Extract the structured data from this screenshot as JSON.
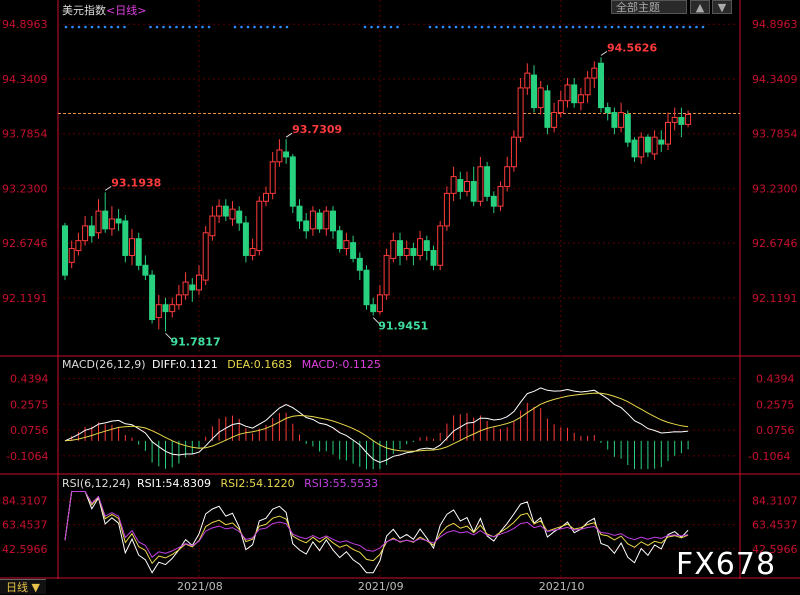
{
  "header": {
    "title": "美元指数",
    "period": "<日线>",
    "theme_button": "全部主题",
    "arrow_up": "▲",
    "arrow_down": "▼"
  },
  "colors": {
    "up": "#ff3b3b",
    "down": "#27d17f",
    "axis": "#c8102e",
    "grid": "#5a0000",
    "high_label": "#ff3b3b",
    "low_label": "#40e0a0",
    "dif": "#ffffff",
    "dea": "#e8d84a",
    "macd": "#e040e0",
    "rsi1": "#ffffff",
    "rsi2": "#e8d84a",
    "rsi3": "#c040e0",
    "dots": "#2a8cff",
    "ref_line": "#e89040"
  },
  "chart_data": {
    "type": "candlestick",
    "price_ticks": [
      "94.8963",
      "94.3409",
      "93.7854",
      "93.2300",
      "92.6746",
      "92.1191"
    ],
    "price_range": [
      91.55,
      95.0
    ],
    "x_labels": [
      "2021/08",
      "2021/09",
      "2021/10"
    ],
    "annotations": [
      {
        "text": "93.1938",
        "index": 6,
        "kind": "high"
      },
      {
        "text": "91.7817",
        "index": 15,
        "kind": "low"
      },
      {
        "text": "93.7309",
        "index": 33,
        "kind": "high"
      },
      {
        "text": "91.9451",
        "index": 46,
        "kind": "low"
      },
      {
        "text": "94.5626",
        "index": 80,
        "kind": "high"
      }
    ],
    "reference_price": 93.99,
    "candles": [
      [
        92.85,
        92.35,
        92.88,
        92.3
      ],
      [
        92.48,
        92.62,
        92.7,
        92.42
      ],
      [
        92.6,
        92.7,
        92.78,
        92.55
      ],
      [
        92.7,
        92.85,
        92.95,
        92.65
      ],
      [
        92.85,
        92.75,
        92.95,
        92.68
      ],
      [
        92.78,
        93.0,
        93.12,
        92.72
      ],
      [
        93.0,
        92.82,
        93.19,
        92.78
      ],
      [
        92.82,
        92.92,
        93.05,
        92.75
      ],
      [
        92.92,
        92.88,
        93.02,
        92.8
      ],
      [
        92.9,
        92.55,
        92.96,
        92.48
      ],
      [
        92.55,
        92.72,
        92.82,
        92.45
      ],
      [
        92.72,
        92.45,
        92.78,
        92.4
      ],
      [
        92.45,
        92.35,
        92.55,
        92.3
      ],
      [
        92.35,
        91.9,
        92.4,
        91.86
      ],
      [
        91.92,
        92.05,
        92.15,
        91.8
      ],
      [
        92.05,
        91.98,
        92.12,
        91.78
      ],
      [
        91.98,
        92.05,
        92.12,
        91.92
      ],
      [
        92.05,
        92.15,
        92.25,
        92.0
      ],
      [
        92.15,
        92.28,
        92.38,
        92.1
      ],
      [
        92.25,
        92.2,
        92.32,
        92.08
      ],
      [
        92.2,
        92.35,
        92.45,
        92.15
      ],
      [
        92.3,
        92.78,
        92.85,
        92.25
      ],
      [
        92.75,
        92.95,
        93.05,
        92.7
      ],
      [
        92.95,
        93.05,
        93.12,
        92.88
      ],
      [
        93.05,
        92.95,
        93.12,
        92.9
      ],
      [
        92.92,
        93.02,
        93.1,
        92.85
      ],
      [
        93.0,
        92.88,
        93.05,
        92.8
      ],
      [
        92.88,
        92.55,
        92.95,
        92.48
      ],
      [
        92.55,
        92.62,
        92.72,
        92.5
      ],
      [
        92.6,
        93.1,
        93.15,
        92.55
      ],
      [
        93.1,
        93.18,
        93.25,
        93.05
      ],
      [
        93.18,
        93.5,
        93.6,
        93.12
      ],
      [
        93.5,
        93.62,
        93.73,
        93.45
      ],
      [
        93.6,
        93.55,
        93.73,
        93.48
      ],
      [
        93.55,
        93.05,
        93.58,
        92.98
      ],
      [
        93.05,
        92.9,
        93.12,
        92.82
      ],
      [
        92.9,
        92.8,
        92.98,
        92.72
      ],
      [
        92.82,
        93.0,
        93.05,
        92.75
      ],
      [
        92.98,
        92.82,
        93.02,
        92.78
      ],
      [
        92.82,
        93.0,
        93.05,
        92.75
      ],
      [
        93.0,
        92.8,
        93.05,
        92.72
      ],
      [
        92.8,
        92.62,
        92.85,
        92.58
      ],
      [
        92.62,
        92.7,
        92.78,
        92.55
      ],
      [
        92.68,
        92.52,
        92.75,
        92.48
      ],
      [
        92.52,
        92.4,
        92.58,
        92.3
      ],
      [
        92.4,
        92.05,
        92.45,
        92.0
      ],
      [
        92.05,
        91.98,
        92.12,
        91.94
      ],
      [
        91.98,
        92.15,
        92.25,
        91.95
      ],
      [
        92.15,
        92.55,
        92.62,
        92.1
      ],
      [
        92.52,
        92.7,
        92.78,
        92.48
      ],
      [
        92.7,
        92.55,
        92.78,
        92.45
      ],
      [
        92.55,
        92.62,
        92.7,
        92.5
      ],
      [
        92.62,
        92.55,
        92.68,
        92.45
      ],
      [
        92.55,
        92.72,
        92.8,
        92.5
      ],
      [
        92.7,
        92.6,
        92.75,
        92.5
      ],
      [
        92.6,
        92.45,
        92.65,
        92.4
      ],
      [
        92.45,
        92.85,
        92.9,
        92.4
      ],
      [
        92.85,
        93.18,
        93.25,
        92.8
      ],
      [
        93.18,
        93.35,
        93.45,
        93.1
      ],
      [
        93.32,
        93.2,
        93.4,
        93.12
      ],
      [
        93.2,
        93.3,
        93.4,
        93.15
      ],
      [
        93.3,
        93.1,
        93.45,
        93.05
      ],
      [
        93.1,
        93.45,
        93.55,
        93.05
      ],
      [
        93.45,
        93.15,
        93.5,
        93.1
      ],
      [
        93.15,
        93.05,
        93.2,
        92.98
      ],
      [
        93.05,
        93.25,
        93.3,
        93.0
      ],
      [
        93.25,
        93.45,
        93.55,
        93.2
      ],
      [
        93.45,
        93.75,
        93.82,
        93.4
      ],
      [
        93.75,
        94.25,
        94.35,
        93.7
      ],
      [
        94.25,
        94.4,
        94.5,
        94.18
      ],
      [
        94.38,
        94.05,
        94.48,
        94.0
      ],
      [
        94.05,
        94.25,
        94.32,
        93.98
      ],
      [
        94.22,
        93.85,
        94.28,
        93.78
      ],
      [
        93.85,
        94.0,
        94.1,
        93.8
      ],
      [
        94.0,
        94.12,
        94.22,
        93.95
      ],
      [
        94.12,
        94.28,
        94.35,
        94.05
      ],
      [
        94.28,
        94.1,
        94.35,
        94.05
      ],
      [
        94.1,
        94.18,
        94.25,
        94.02
      ],
      [
        94.18,
        94.35,
        94.42,
        94.1
      ],
      [
        94.35,
        94.45,
        94.52,
        94.25
      ],
      [
        94.5,
        94.05,
        94.56,
        94.0
      ],
      [
        94.05,
        94.0,
        94.1,
        93.92
      ],
      [
        94.0,
        93.85,
        94.05,
        93.78
      ],
      [
        93.85,
        94.0,
        94.1,
        93.8
      ],
      [
        93.98,
        93.7,
        94.02,
        93.65
      ],
      [
        93.72,
        93.55,
        93.75,
        93.5
      ],
      [
        93.55,
        93.75,
        93.8,
        93.48
      ],
      [
        93.75,
        93.6,
        93.78,
        93.55
      ],
      [
        93.58,
        93.75,
        93.82,
        93.52
      ],
      [
        93.72,
        93.68,
        93.82,
        93.6
      ],
      [
        93.68,
        93.9,
        94.0,
        93.62
      ],
      [
        93.9,
        93.95,
        94.05,
        93.82
      ],
      [
        93.95,
        93.88,
        94.05,
        93.75
      ],
      [
        93.88,
        93.98,
        94.02,
        93.85
      ]
    ],
    "macd": {
      "label": "MACD(26,12,9)",
      "dif_label": "DIFF:0.1121",
      "dea_label": "DEA:0.1683",
      "macd_label": "MACD:-0.1125",
      "ticks": [
        "0.4394",
        "0.2575",
        "0.0756",
        "-0.1064"
      ],
      "range": [
        -0.22,
        0.5
      ]
    },
    "rsi": {
      "label": "RSI(6,12,24)",
      "rsi1_label": "RSI1:54.8309",
      "rsi2_label": "RSI2:54.1220",
      "rsi3_label": "RSI3:55.5533",
      "ticks": [
        "84.3107",
        "63.4537",
        "42.5966"
      ],
      "range": [
        20,
        95
      ]
    }
  },
  "footer": {
    "period_tab": "日线",
    "watermark": "FX678"
  }
}
